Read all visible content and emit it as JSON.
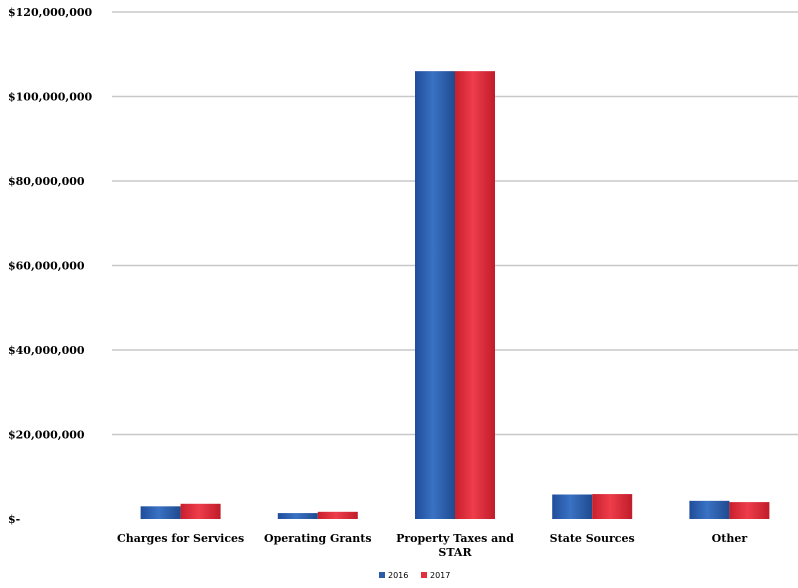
{
  "chart_data": {
    "type": "bar",
    "title": "",
    "xlabel": "",
    "ylabel": "",
    "categories": [
      [
        "Charges for Services"
      ],
      [
        "Operating Grants"
      ],
      [
        "Property Taxes and",
        "STAR"
      ],
      [
        "State Sources"
      ],
      [
        "Other"
      ]
    ],
    "series": [
      {
        "name": "2016",
        "color": "#2a5caa",
        "values": [
          3000000,
          1400000,
          106000000,
          5800000,
          4300000
        ]
      },
      {
        "name": "2017",
        "color": "#e0303e",
        "values": [
          3600000,
          1700000,
          106000000,
          5900000,
          4000000
        ]
      }
    ],
    "ylim": [
      0,
      120000000
    ],
    "yticks": [
      {
        "value": 0,
        "label": "$-"
      },
      {
        "value": 20000000,
        "label": "$20,000,000"
      },
      {
        "value": 40000000,
        "label": "$40,000,000"
      },
      {
        "value": 60000000,
        "label": "$60,000,000"
      },
      {
        "value": 80000000,
        "label": "$80,000,000"
      },
      {
        "value": 100000000,
        "label": "$100,000,000"
      },
      {
        "value": 120000000,
        "label": "$120,000,000"
      }
    ],
    "grid": true,
    "legend_position": "bottom-center"
  }
}
